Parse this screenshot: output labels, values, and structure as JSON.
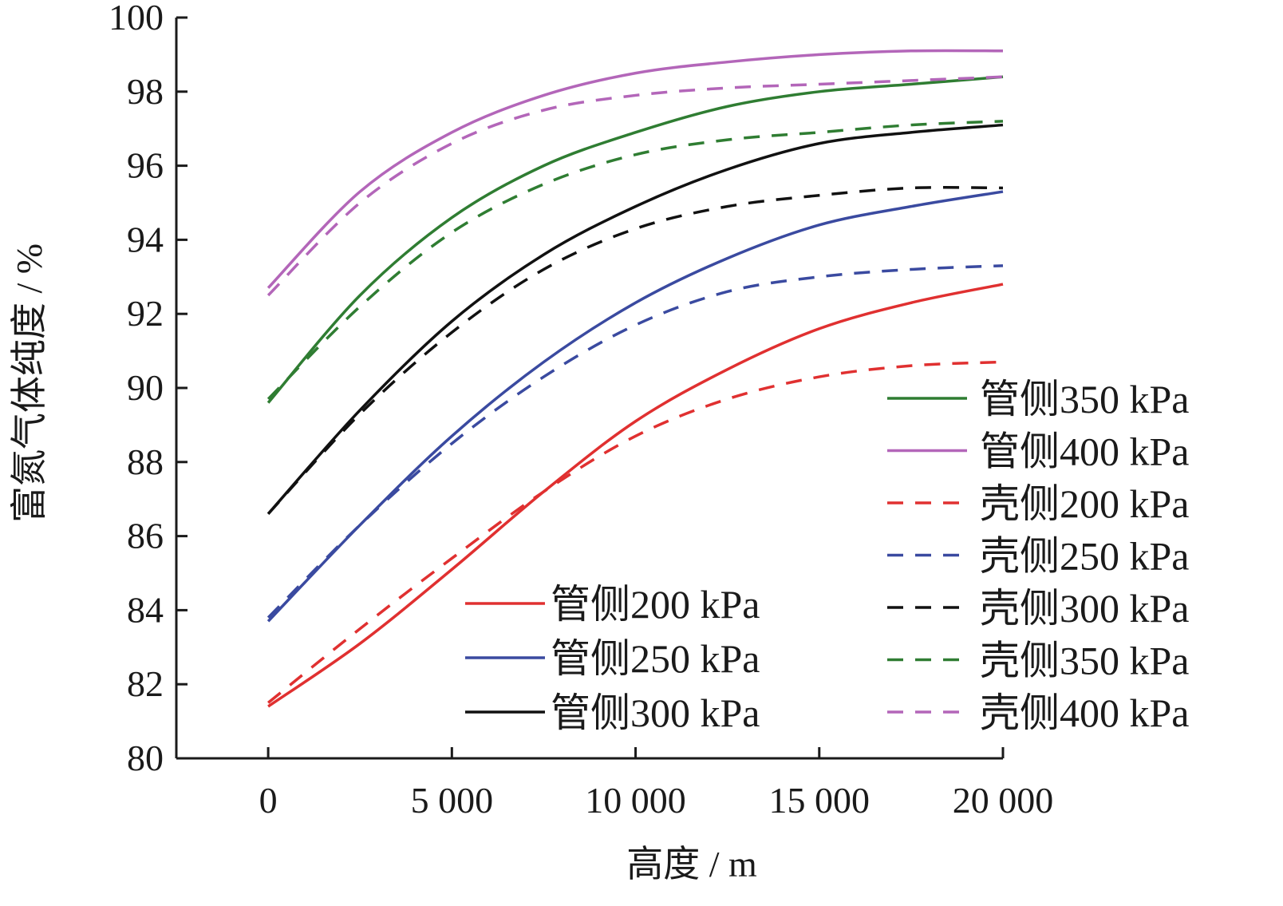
{
  "chart_data": {
    "type": "line",
    "title": "",
    "xlabel": "高度 / m",
    "ylabel": "富氮气体纯度 / %",
    "xlim": [
      -2500,
      20000
    ],
    "ylim": [
      80,
      100
    ],
    "x_ticks": [
      0,
      5000,
      10000,
      15000,
      20000
    ],
    "x_tick_labels": [
      "0",
      "5 000",
      "10 000",
      "15 000",
      "20 000"
    ],
    "y_ticks": [
      80,
      82,
      84,
      86,
      88,
      90,
      92,
      94,
      96,
      98,
      100
    ],
    "y_tick_labels": [
      "80",
      "82",
      "84",
      "86",
      "88",
      "90",
      "92",
      "94",
      "96",
      "98",
      "100"
    ],
    "grid": false,
    "x": [
      0,
      2500,
      5000,
      7500,
      10000,
      12500,
      15000,
      17500,
      20000
    ],
    "series": [
      {
        "name": "管侧200 kPa",
        "color": "#e03030",
        "style": "solid",
        "values": [
          81.4,
          83.1,
          85.1,
          87.2,
          89.1,
          90.5,
          91.6,
          92.3,
          92.8
        ]
      },
      {
        "name": "管侧250 kPa",
        "color": "#3a4aa0",
        "style": "solid",
        "values": [
          83.7,
          86.3,
          88.7,
          90.7,
          92.3,
          93.5,
          94.4,
          94.9,
          95.3
        ]
      },
      {
        "name": "管侧300 kPa",
        "color": "#111111",
        "style": "solid",
        "values": [
          86.6,
          89.4,
          91.8,
          93.6,
          94.9,
          95.9,
          96.6,
          96.9,
          97.1
        ]
      },
      {
        "name": "管侧350 kPa",
        "color": "#2f7d32",
        "style": "solid",
        "values": [
          89.6,
          92.5,
          94.6,
          96.0,
          96.9,
          97.6,
          98.0,
          98.2,
          98.4
        ]
      },
      {
        "name": "管侧400 kPa",
        "color": "#b366b9",
        "style": "solid",
        "values": [
          92.7,
          95.3,
          96.9,
          97.9,
          98.5,
          98.8,
          99.0,
          99.1,
          99.1
        ]
      },
      {
        "name": "壳侧200 kPa",
        "color": "#e03030",
        "style": "dashed",
        "values": [
          81.5,
          83.5,
          85.4,
          87.2,
          88.7,
          89.7,
          90.3,
          90.6,
          90.7
        ]
      },
      {
        "name": "壳侧250 kPa",
        "color": "#3a4aa0",
        "style": "dashed",
        "values": [
          83.8,
          86.3,
          88.5,
          90.3,
          91.7,
          92.6,
          93.0,
          93.2,
          93.3
        ]
      },
      {
        "name": "壳侧300 kPa",
        "color": "#111111",
        "style": "dashed",
        "values": [
          86.6,
          89.3,
          91.5,
          93.2,
          94.3,
          94.9,
          95.2,
          95.4,
          95.4
        ]
      },
      {
        "name": "壳侧350 kPa",
        "color": "#2f7d32",
        "style": "dashed",
        "values": [
          89.7,
          92.2,
          94.2,
          95.5,
          96.3,
          96.7,
          96.9,
          97.1,
          97.2
        ]
      },
      {
        "name": "壳侧400 kPa",
        "color": "#b366b9",
        "style": "dashed",
        "values": [
          92.5,
          95.0,
          96.6,
          97.5,
          97.9,
          98.1,
          98.2,
          98.3,
          98.4
        ]
      }
    ],
    "legend_groups": [
      {
        "placement": "lower-center",
        "entries": [
          0,
          1,
          2
        ]
      },
      {
        "placement": "right",
        "entries": [
          3,
          4,
          5,
          6,
          7,
          8,
          9
        ]
      }
    ]
  }
}
